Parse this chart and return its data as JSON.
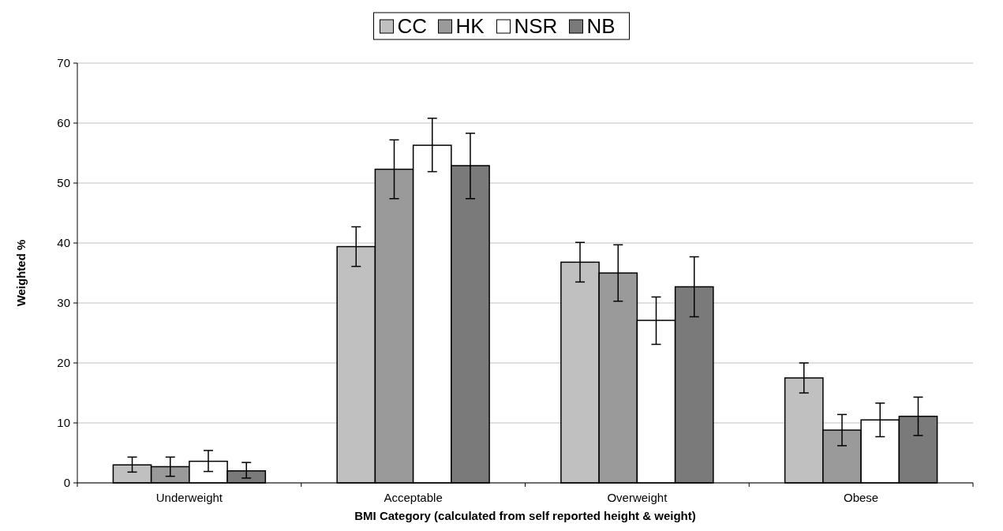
{
  "chart_data": {
    "type": "bar",
    "xlabel": "BMI Category (calculated from self reported height & weight)",
    "ylabel": "Weighted %",
    "categories": [
      "Underweight",
      "Acceptable",
      "Overweight",
      "Obese"
    ],
    "series": [
      {
        "name": "CC",
        "color": "#c0c0c0",
        "values": [
          3.0,
          39.4,
          36.8,
          17.5
        ],
        "errors": [
          [
            1.8,
            4.3
          ],
          [
            36.1,
            42.7
          ],
          [
            33.5,
            40.1
          ],
          [
            15.0,
            20.0
          ]
        ]
      },
      {
        "name": "HK",
        "color": "#9a9a9a",
        "values": [
          2.7,
          52.3,
          35.0,
          8.8
        ],
        "errors": [
          [
            1.1,
            4.3
          ],
          [
            47.4,
            57.2
          ],
          [
            30.3,
            39.7
          ],
          [
            6.2,
            11.4
          ]
        ]
      },
      {
        "name": "NSR",
        "color": "#ffffff",
        "values": [
          3.6,
          56.3,
          27.1,
          10.5
        ],
        "errors": [
          [
            1.9,
            5.4
          ],
          [
            51.9,
            60.8
          ],
          [
            23.1,
            31.0
          ],
          [
            7.7,
            13.3
          ]
        ]
      },
      {
        "name": "NB",
        "color": "#7a7a7a",
        "values": [
          2.0,
          52.9,
          32.7,
          11.1
        ],
        "errors": [
          [
            0.8,
            3.4
          ],
          [
            47.4,
            58.3
          ],
          [
            27.7,
            37.7
          ],
          [
            7.9,
            14.3
          ]
        ]
      }
    ],
    "ylim": [
      0,
      70
    ],
    "yticks": [
      0,
      10,
      20,
      30,
      40,
      50,
      60,
      70
    ],
    "grid": "y",
    "legend": "top"
  }
}
